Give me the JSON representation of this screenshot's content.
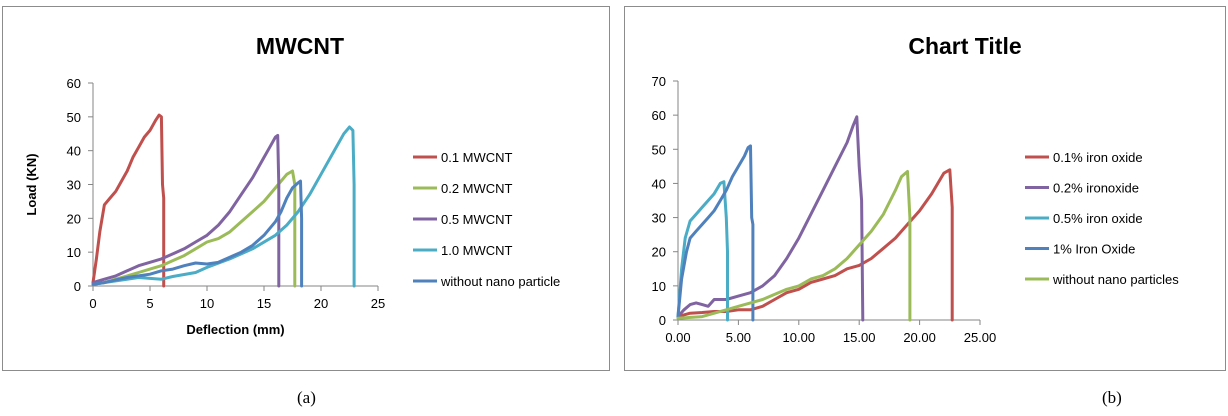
{
  "chart_data": [
    {
      "type": "line",
      "title": "MWCNT",
      "xlabel": "Deflection (mm)",
      "ylabel": "Load (KN)",
      "xlim": [
        0,
        25
      ],
      "ylim": [
        0,
        60
      ],
      "xticks": [
        "0",
        "5",
        "10",
        "15",
        "20",
        "25"
      ],
      "yticks": [
        "0",
        "10",
        "20",
        "30",
        "40",
        "50",
        "60"
      ],
      "grid": false,
      "legend_position": "right",
      "series": [
        {
          "name": "0.1 MWCNT",
          "color": "#c0504d",
          "points": [
            [
              0,
              1
            ],
            [
              0.3,
              8
            ],
            [
              0.6,
              16
            ],
            [
              1,
              24
            ],
            [
              1.5,
              26
            ],
            [
              2,
              28
            ],
            [
              2.5,
              31
            ],
            [
              3,
              34
            ],
            [
              3.5,
              38
            ],
            [
              4,
              41
            ],
            [
              4.5,
              44
            ],
            [
              5,
              46
            ],
            [
              5.5,
              49
            ],
            [
              5.8,
              50.5
            ],
            [
              6,
              50
            ],
            [
              6.1,
              30
            ],
            [
              6.2,
              26
            ],
            [
              6.2,
              0
            ]
          ]
        },
        {
          "name": "0.2 MWCNT",
          "color": "#9bbb59",
          "points": [
            [
              0,
              0.5
            ],
            [
              1,
              1
            ],
            [
              2,
              2
            ],
            [
              3,
              3
            ],
            [
              4,
              4
            ],
            [
              5,
              5
            ],
            [
              6,
              6
            ],
            [
              7,
              7.5
            ],
            [
              8,
              9
            ],
            [
              9,
              11
            ],
            [
              10,
              13
            ],
            [
              11,
              14
            ],
            [
              12,
              16
            ],
            [
              13,
              19
            ],
            [
              14,
              22
            ],
            [
              15,
              25
            ],
            [
              16,
              29
            ],
            [
              17,
              33
            ],
            [
              17.5,
              34
            ],
            [
              17.7,
              30
            ],
            [
              17.7,
              0
            ]
          ]
        },
        {
          "name": "0.5 MWCNT",
          "color": "#8064a2",
          "points": [
            [
              0,
              1
            ],
            [
              1,
              2
            ],
            [
              2,
              3
            ],
            [
              3,
              4.5
            ],
            [
              4,
              6
            ],
            [
              5,
              7
            ],
            [
              6,
              8
            ],
            [
              7,
              9.5
            ],
            [
              8,
              11
            ],
            [
              9,
              13
            ],
            [
              10,
              15
            ],
            [
              11,
              18
            ],
            [
              12,
              22
            ],
            [
              13,
              27
            ],
            [
              14,
              32
            ],
            [
              15,
              38
            ],
            [
              15.5,
              41
            ],
            [
              16,
              44
            ],
            [
              16.2,
              44.5
            ],
            [
              16.3,
              30
            ],
            [
              16.3,
              0
            ]
          ]
        },
        {
          "name": "1.0 MWCNT",
          "color": "#4bacc6",
          "points": [
            [
              0,
              0.5
            ],
            [
              2,
              1.5
            ],
            [
              4,
              2.5
            ],
            [
              6,
              2
            ],
            [
              7,
              2.8
            ],
            [
              9,
              4
            ],
            [
              10,
              5.5
            ],
            [
              12,
              8
            ],
            [
              14,
              11
            ],
            [
              16,
              15
            ],
            [
              17,
              18
            ],
            [
              18,
              22
            ],
            [
              19,
              27
            ],
            [
              20,
              33
            ],
            [
              21,
              39
            ],
            [
              22,
              45
            ],
            [
              22.5,
              47
            ],
            [
              22.8,
              46
            ],
            [
              22.9,
              30
            ],
            [
              22.9,
              0
            ]
          ]
        },
        {
          "name": "without nano particle",
          "color": "#4f81bd",
          "points": [
            [
              0,
              0.5
            ],
            [
              1,
              1
            ],
            [
              2,
              1.8
            ],
            [
              3,
              2.5
            ],
            [
              4,
              3
            ],
            [
              5,
              3.5
            ],
            [
              6,
              4.5
            ],
            [
              7,
              5
            ],
            [
              8,
              6
            ],
            [
              9,
              6.8
            ],
            [
              10,
              6.5
            ],
            [
              11,
              7
            ],
            [
              12,
              8.5
            ],
            [
              13,
              10
            ],
            [
              14,
              12
            ],
            [
              15,
              15
            ],
            [
              16,
              19
            ],
            [
              16.5,
              22
            ],
            [
              17,
              26
            ],
            [
              17.5,
              29
            ],
            [
              18,
              30.5
            ],
            [
              18.2,
              31
            ],
            [
              18.3,
              20
            ],
            [
              18.3,
              0
            ]
          ]
        }
      ]
    },
    {
      "type": "line",
      "title": "Chart Title",
      "xlabel": "",
      "ylabel": "",
      "xlim": [
        0,
        25
      ],
      "ylim": [
        0,
        70
      ],
      "xticks": [
        "0.00",
        "5.00",
        "10.00",
        "15.00",
        "20.00",
        "25.00"
      ],
      "yticks": [
        "0",
        "10",
        "20",
        "30",
        "40",
        "50",
        "60",
        "70"
      ],
      "grid": false,
      "legend_position": "right",
      "series": [
        {
          "name": "0.1% iron oxide",
          "color": "#c0504d",
          "points": [
            [
              0,
              1
            ],
            [
              1,
              2
            ],
            [
              2,
              2.2
            ],
            [
              3,
              2.5
            ],
            [
              4,
              2.5
            ],
            [
              5,
              3
            ],
            [
              6,
              3
            ],
            [
              7,
              4
            ],
            [
              8,
              6
            ],
            [
              9,
              8
            ],
            [
              10,
              9
            ],
            [
              11,
              11
            ],
            [
              12,
              12
            ],
            [
              13,
              13
            ],
            [
              14,
              15
            ],
            [
              15,
              16
            ],
            [
              16,
              18
            ],
            [
              17,
              21
            ],
            [
              18,
              24
            ],
            [
              19,
              28
            ],
            [
              20,
              32
            ],
            [
              21,
              37
            ],
            [
              22,
              43
            ],
            [
              22.5,
              44
            ],
            [
              22.7,
              33
            ],
            [
              22.7,
              0
            ]
          ]
        },
        {
          "name": "0.2% ironoxide",
          "color": "#8064a2",
          "points": [
            [
              0,
              1
            ],
            [
              0.5,
              3
            ],
            [
              1,
              4.5
            ],
            [
              1.5,
              5
            ],
            [
              2,
              4.5
            ],
            [
              2.5,
              4
            ],
            [
              3,
              6
            ],
            [
              4,
              6
            ],
            [
              5,
              7
            ],
            [
              6,
              8
            ],
            [
              7,
              10
            ],
            [
              8,
              13
            ],
            [
              9,
              18
            ],
            [
              10,
              24
            ],
            [
              11,
              31
            ],
            [
              12,
              38
            ],
            [
              13,
              45
            ],
            [
              14,
              52
            ],
            [
              14.5,
              57
            ],
            [
              14.8,
              59.5
            ],
            [
              15,
              45
            ],
            [
              15.2,
              35
            ],
            [
              15.3,
              0
            ]
          ]
        },
        {
          "name": "0.5% iron oxide",
          "color": "#4bacc6",
          "points": [
            [
              0,
              1
            ],
            [
              0.3,
              15
            ],
            [
              0.6,
              24
            ],
            [
              1,
              29
            ],
            [
              1.5,
              31
            ],
            [
              2,
              33
            ],
            [
              2.5,
              35
            ],
            [
              3,
              37
            ],
            [
              3.5,
              40
            ],
            [
              3.8,
              40.5
            ],
            [
              4,
              30
            ],
            [
              4.1,
              20
            ],
            [
              4.1,
              0
            ]
          ]
        },
        {
          "name": "1% Iron Oxide",
          "color": "#4f81bd",
          "points": [
            [
              0,
              1
            ],
            [
              0.3,
              12
            ],
            [
              0.7,
              20
            ],
            [
              1,
              24
            ],
            [
              1.5,
              26
            ],
            [
              2,
              28
            ],
            [
              2.5,
              30
            ],
            [
              3,
              32
            ],
            [
              3.5,
              35
            ],
            [
              4,
              38
            ],
            [
              4.5,
              42
            ],
            [
              5,
              45
            ],
            [
              5.5,
              48
            ],
            [
              5.8,
              50.5
            ],
            [
              6,
              51
            ],
            [
              6.1,
              30
            ],
            [
              6.2,
              28
            ],
            [
              6.2,
              0
            ]
          ]
        },
        {
          "name": "without nano particles",
          "color": "#9bbb59",
          "points": [
            [
              0,
              0.5
            ],
            [
              2,
              1
            ],
            [
              3,
              2
            ],
            [
              4,
              3
            ],
            [
              5,
              4
            ],
            [
              6,
              5
            ],
            [
              7,
              6
            ],
            [
              8,
              7.5
            ],
            [
              9,
              9
            ],
            [
              10,
              10
            ],
            [
              11,
              12
            ],
            [
              12,
              13
            ],
            [
              13,
              15
            ],
            [
              14,
              18
            ],
            [
              15,
              22
            ],
            [
              16,
              26
            ],
            [
              17,
              31
            ],
            [
              18,
              38
            ],
            [
              18.5,
              42
            ],
            [
              19,
              43.5
            ],
            [
              19.2,
              30
            ],
            [
              19.2,
              0
            ]
          ]
        }
      ]
    }
  ],
  "captions": [
    "(a)",
    "(b)"
  ]
}
